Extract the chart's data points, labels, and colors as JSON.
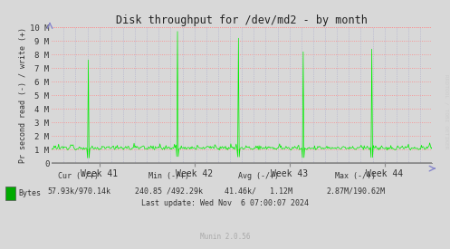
{
  "title": "Disk throughput for /dev/md2 - by month",
  "ylabel": "Pr second read (-) / write (+)",
  "xlabel_ticks": [
    "Week 41",
    "Week 42",
    "Week 43",
    "Week 44"
  ],
  "background_color": "#d8d8d8",
  "plot_bg_color": "#d8d8d8",
  "grid_color_h": "#ff8888",
  "grid_color_v": "#aaaacc",
  "line_color_write": "#00ee00",
  "line_color_read": "#000000",
  "ylim": [
    0,
    10000000
  ],
  "yticks": [
    0,
    1000000,
    2000000,
    3000000,
    4000000,
    5000000,
    6000000,
    7000000,
    8000000,
    9000000,
    10000000
  ],
  "ytick_labels": [
    "0",
    "1 M",
    "2 M",
    "3 M",
    "4 M",
    "5 M",
    "6 M",
    "7 M",
    "8 M",
    "9 M",
    "10 M"
  ],
  "legend_label": "Bytes",
  "legend_color": "#00aa00",
  "footer": "Munin 2.0.56",
  "rrdtool_label": "RRDTOOL / TOBI OETIKER",
  "n_points": 500,
  "spike_positions_write": [
    48,
    165,
    245,
    330,
    420
  ],
  "spike_heights_write": [
    7600000,
    9700000,
    9200000,
    8200000,
    8400000
  ],
  "baseline_write": 950000,
  "noise_amp": 350000,
  "baseline_read": 3000,
  "noise_read": 2000,
  "seed": 12
}
